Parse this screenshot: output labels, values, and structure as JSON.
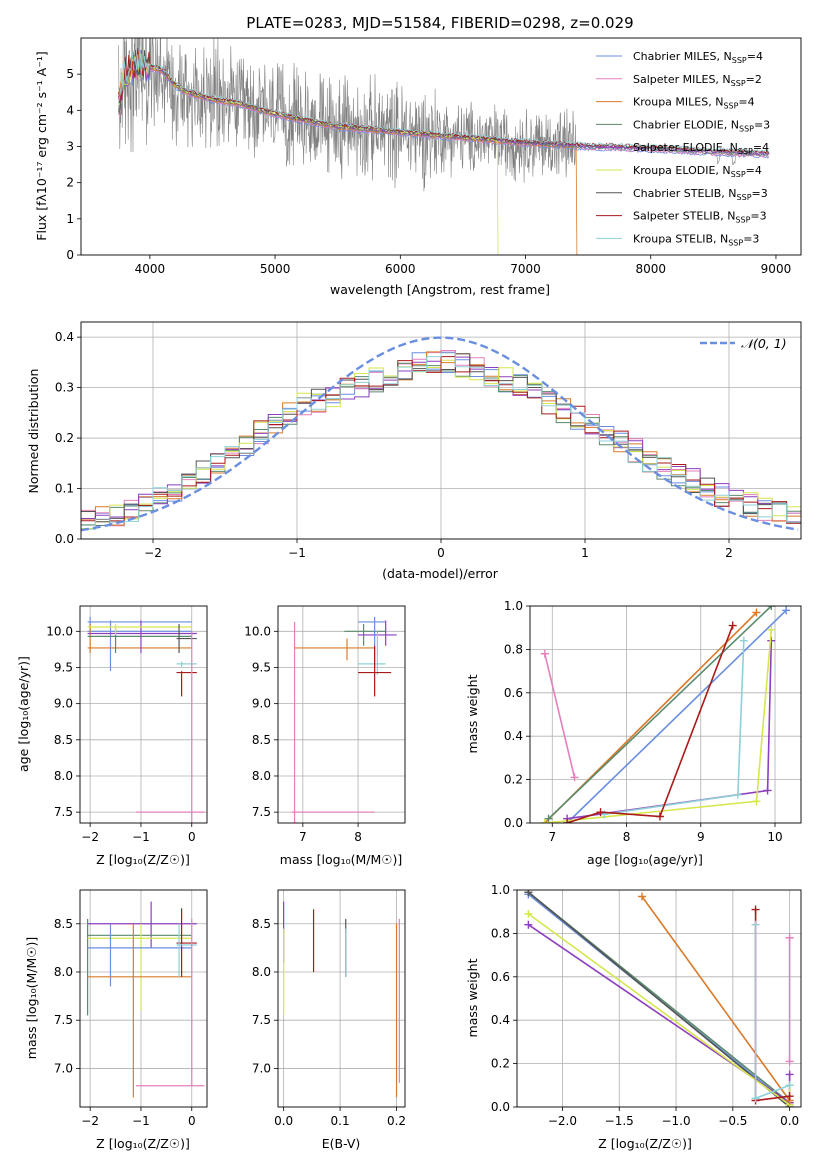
{
  "colors": {
    "spectrum": "#808080",
    "chabrier_miles": "#6a8ee0",
    "salpeter_miles": "#e57fbb",
    "kroupa_miles": "#d97b2a",
    "chabrier_elodie": "#5a8a6c",
    "salpeter_elodie": "#8e3fbf",
    "kroupa_elodie": "#d6e64d",
    "chabrier_stelib": "#555555",
    "salpeter_stelib": "#aa1a1a",
    "kroupa_stelib": "#8fd0d8",
    "normal_curve": "#6a8ee0"
  },
  "chart_data": [
    {
      "id": "spectrum",
      "type": "line",
      "title": "PLATE=0283, MJD=51584, FIBERID=0298, z=0.029",
      "xlabel": "wavelength [Angstrom, rest frame]",
      "ylabel": "Flux [fλ10⁻¹⁷ erg cm⁻² s⁻¹ A⁻¹]",
      "xlim": [
        3450,
        9200
      ],
      "ylim": [
        0,
        6
      ],
      "xticks": [
        4000,
        5000,
        6000,
        7000,
        8000,
        9000
      ],
      "yticks": [
        0,
        1,
        2,
        3,
        4,
        5
      ],
      "legend_position": "top-right",
      "continuum": {
        "x": [
          3750,
          3800,
          3900,
          4000,
          4100,
          4200,
          4300,
          4500,
          4700,
          5000,
          5200,
          5500,
          6000,
          6500,
          7000,
          7500,
          8000,
          8500,
          8900
        ],
        "y": [
          4.1,
          5.0,
          5.3,
          5.2,
          5.1,
          4.7,
          4.5,
          4.3,
          4.2,
          3.9,
          3.75,
          3.55,
          3.4,
          3.25,
          3.1,
          3.0,
          2.95,
          2.85,
          2.8
        ]
      },
      "noise_range": [
        3750,
        7400
      ],
      "model_cutoffs": {
        "kroupa_elodie": 6780,
        "kroupa_miles": 7410
      },
      "series": [
        {
          "name": "Chabrier MILES, N",
          "sub": "SSP",
          "value": "4",
          "color_key": "chabrier_miles"
        },
        {
          "name": "Salpeter MILES, N",
          "sub": "SSP",
          "value": "2",
          "color_key": "salpeter_miles"
        },
        {
          "name": "Kroupa MILES, N",
          "sub": "SSP",
          "value": "4",
          "color_key": "kroupa_miles"
        },
        {
          "name": "Chabrier ELODIE, N",
          "sub": "SSP",
          "value": "3",
          "color_key": "chabrier_elodie"
        },
        {
          "name": "Salpeter ELODIE, N",
          "sub": "SSP",
          "value": "4",
          "color_key": "salpeter_elodie"
        },
        {
          "name": "Kroupa ELODIE, N",
          "sub": "SSP",
          "value": "4",
          "color_key": "kroupa_elodie"
        },
        {
          "name": "Chabrier STELIB, N",
          "sub": "SSP",
          "value": "3",
          "color_key": "chabrier_stelib"
        },
        {
          "name": "Salpeter STELIB, N",
          "sub": "SSP",
          "value": "3",
          "color_key": "salpeter_stelib"
        },
        {
          "name": "Kroupa STELIB, N",
          "sub": "SSP",
          "value": "3",
          "color_key": "kroupa_stelib"
        }
      ]
    },
    {
      "id": "residuals",
      "type": "bar",
      "xlabel": "(data-model)/error",
      "ylabel": "Normed distribution",
      "xlim": [
        -2.5,
        2.5
      ],
      "ylim": [
        0,
        0.43
      ],
      "xticks": [
        -2,
        -1,
        0,
        1,
        2
      ],
      "yticks": [
        0.0,
        0.1,
        0.2,
        0.3,
        0.4
      ],
      "bin_width": 0.1,
      "grid": true,
      "legend": [
        {
          "name": "𝒩(0, 1)",
          "color_key": "normal_curve",
          "style": "dashed"
        }
      ],
      "legend_position": "top-right",
      "histogram_profile": {
        "x": [
          -2.5,
          -2.0,
          -1.5,
          -1.0,
          -0.5,
          0.0,
          0.5,
          1.0,
          1.5,
          2.0,
          2.5
        ],
        "y": [
          0.03,
          0.07,
          0.16,
          0.26,
          0.31,
          0.36,
          0.31,
          0.23,
          0.15,
          0.08,
          0.04
        ]
      }
    },
    {
      "id": "age_vs_Z",
      "type": "scatter",
      "xlabel": "Z [log₁₀(Z/Z☉)]",
      "ylabel": "age  [log₁₀(age/yr)]",
      "xlim": [
        -2.2,
        0.3
      ],
      "ylim": [
        7.35,
        10.35
      ],
      "xticks": [
        -2,
        -1,
        0
      ],
      "yticks": [
        7.5,
        8.0,
        8.5,
        9.0,
        9.5,
        10.0
      ],
      "crosses": [
        {
          "c": "chabrier_miles",
          "x": -2.0,
          "y": 10.13,
          "ex": [
            -2.05,
            0.0
          ],
          "ey": [
            10.0,
            10.2
          ]
        },
        {
          "c": "chabrier_miles",
          "x": -1.6,
          "y": 10.0,
          "ex": [
            -2.05,
            0.0
          ],
          "ey": [
            9.45,
            10.15
          ]
        },
        {
          "c": "kroupa_miles",
          "x": -2.0,
          "y": 9.77,
          "ex": [
            -2.05,
            0.0
          ],
          "ey": [
            9.7,
            10.1
          ]
        },
        {
          "c": "chabrier_elodie",
          "x": -1.5,
          "y": 9.93,
          "ex": [
            -2.05,
            0.0
          ],
          "ey": [
            9.7,
            10.05
          ]
        },
        {
          "c": "salpeter_elodie",
          "x": -1.0,
          "y": 9.97,
          "ex": [
            -2.05,
            0.1
          ],
          "ey": [
            9.7,
            10.15
          ]
        },
        {
          "c": "kroupa_elodie",
          "x": -1.5,
          "y": 10.06,
          "ex": [
            -2.05,
            0.0
          ],
          "ey": [
            9.95,
            10.1
          ]
        },
        {
          "c": "salpeter_stelib",
          "x": -0.2,
          "y": 9.43,
          "ex": [
            -0.3,
            0.1
          ],
          "ey": [
            9.1,
            9.45
          ]
        },
        {
          "c": "kroupa_stelib",
          "x": -0.2,
          "y": 9.55,
          "ex": [
            -0.3,
            0.1
          ],
          "ey": [
            9.5,
            9.58
          ]
        },
        {
          "c": "chabrier_stelib",
          "x": -0.25,
          "y": 9.9,
          "ex": [
            -0.3,
            0.1
          ],
          "ey": [
            9.7,
            10.1
          ]
        },
        {
          "c": "salpeter_miles",
          "x": 0.0,
          "y": 7.5,
          "ex": [
            -1.1,
            0.25
          ],
          "ey": [
            7.35,
            10.0
          ]
        }
      ]
    },
    {
      "id": "age_vs_mass",
      "type": "scatter",
      "xlabel": "mass [log₁₀(M/M☉)]",
      "ylim": [
        7.35,
        10.35
      ],
      "xlim": [
        6.55,
        8.85
      ],
      "xticks": [
        7,
        8
      ],
      "yticks": [
        7.5,
        8.0,
        8.5,
        9.0,
        9.5,
        10.0
      ],
      "crosses": [
        {
          "c": "kroupa_miles",
          "x": 7.8,
          "y": 9.77,
          "ex": [
            6.85,
            8.3
          ],
          "ey": [
            9.6,
            9.9
          ]
        },
        {
          "c": "chabrier_elodie",
          "x": 8.1,
          "y": 10.0,
          "ex": [
            7.75,
            8.5
          ],
          "ey": [
            9.8,
            10.1
          ]
        },
        {
          "c": "salpeter_elodie",
          "x": 8.5,
          "y": 9.95,
          "ex": [
            8.0,
            8.7
          ],
          "ey": [
            9.8,
            10.15
          ]
        },
        {
          "c": "chabrier_miles",
          "x": 8.3,
          "y": 10.13,
          "ex": [
            8.0,
            8.5
          ],
          "ey": [
            9.5,
            10.2
          ]
        },
        {
          "c": "kroupa_stelib",
          "x": 8.35,
          "y": 9.55,
          "ex": [
            8.0,
            8.5
          ],
          "ey": [
            9.4,
            10.0
          ]
        },
        {
          "c": "salpeter_stelib",
          "x": 8.3,
          "y": 9.43,
          "ex": [
            8.0,
            8.6
          ],
          "ey": [
            9.1,
            9.8
          ]
        },
        {
          "c": "salpeter_miles",
          "x": 6.85,
          "y": 7.5,
          "ex": [
            6.8,
            8.3
          ],
          "ey": [
            7.35,
            10.13
          ]
        }
      ]
    },
    {
      "id": "mass_weight_vs_age",
      "type": "line",
      "xlabel": "age  [log₁₀(age/yr)]",
      "ylabel": "mass weight",
      "xlim": [
        6.7,
        10.35
      ],
      "ylim": [
        0,
        1.0
      ],
      "xticks": [
        7,
        8,
        9,
        10
      ],
      "yticks": [
        0.0,
        0.2,
        0.4,
        0.6,
        0.8,
        1.0
      ],
      "series": [
        {
          "c": "salpeter_miles",
          "x": [
            6.9,
            7.3
          ],
          "y": [
            0.78,
            0.21
          ]
        },
        {
          "c": "chabrier_miles",
          "x": [
            7.2,
            10.15
          ],
          "y": [
            0.0,
            0.98
          ]
        },
        {
          "c": "kroupa_miles",
          "x": [
            6.9,
            9.75
          ],
          "y": [
            0.0,
            0.97
          ]
        },
        {
          "c": "chabrier_elodie",
          "x": [
            6.95,
            9.95
          ],
          "y": [
            0.02,
            1.0
          ]
        },
        {
          "c": "salpeter_elodie",
          "x": [
            7.2,
            9.9,
            9.95
          ],
          "y": [
            0.02,
            0.15,
            0.84
          ]
        },
        {
          "c": "kroupa_elodie",
          "x": [
            6.9,
            9.75,
            9.95
          ],
          "y": [
            0.0,
            0.1,
            0.89
          ]
        },
        {
          "c": "kroupa_stelib",
          "x": [
            7.7,
            9.5,
            9.58
          ],
          "y": [
            0.04,
            0.13,
            0.84
          ]
        },
        {
          "c": "salpeter_stelib",
          "x": [
            7.2,
            7.65,
            8.45,
            9.43
          ],
          "y": [
            0.0,
            0.05,
            0.03,
            0.91
          ]
        }
      ]
    },
    {
      "id": "mass_vs_Z",
      "type": "scatter",
      "xlabel": "Z [log₁₀(Z/Z☉)]",
      "ylabel": "mass [log₁₀(M/M☉)]",
      "xlim": [
        -2.2,
        0.3
      ],
      "ylim": [
        6.6,
        8.85
      ],
      "xticks": [
        -2,
        -1,
        0
      ],
      "yticks": [
        7.0,
        7.5,
        8.0,
        8.5
      ],
      "crosses": [
        {
          "c": "salpeter_elodie",
          "x": -0.8,
          "y": 8.5,
          "ex": [
            -2.05,
            0.1
          ],
          "ey": [
            8.25,
            8.73
          ]
        },
        {
          "c": "chabrier_elodie",
          "x": -2.05,
          "y": 8.38,
          "ex": [
            -2.05,
            0.0
          ],
          "ey": [
            7.55,
            8.55
          ]
        },
        {
          "c": "kroupa_elodie",
          "x": -1.0,
          "y": 8.35,
          "ex": [
            -2.05,
            0.0
          ],
          "ey": [
            7.6,
            8.5
          ]
        },
        {
          "c": "chabrier_miles",
          "x": -1.6,
          "y": 8.25,
          "ex": [
            -2.05,
            0.0
          ],
          "ey": [
            7.85,
            8.5
          ]
        },
        {
          "c": "kroupa_miles",
          "x": -1.15,
          "y": 7.95,
          "ex": [
            -2.05,
            0.0
          ],
          "ey": [
            6.7,
            8.5
          ]
        },
        {
          "c": "salpeter_stelib",
          "x": -0.2,
          "y": 8.3,
          "ex": [
            -0.3,
            0.1
          ],
          "ey": [
            7.95,
            8.66
          ]
        },
        {
          "c": "kroupa_stelib",
          "x": -0.25,
          "y": 8.28,
          "ex": [
            -0.3,
            0.1
          ],
          "ey": [
            7.95,
            8.5
          ]
        },
        {
          "c": "salpeter_miles",
          "x": 0.0,
          "y": 6.82,
          "ex": [
            -1.1,
            0.25
          ],
          "ey": [
            6.82,
            8.55
          ]
        }
      ]
    },
    {
      "id": "mass_vs_ebv",
      "type": "scatter",
      "xlabel": "E(B-V)",
      "xlim": [
        -0.01,
        0.215
      ],
      "ylim": [
        6.6,
        8.85
      ],
      "xticks": [
        0.0,
        0.1,
        0.2
      ],
      "yticks": [
        7.0,
        7.5,
        8.0,
        8.5
      ],
      "bars": [
        {
          "c": "salpeter_elodie",
          "x": 0.0,
          "y": [
            8.1,
            8.73
          ]
        },
        {
          "c": "kroupa_elodie",
          "x": 0.0,
          "y": [
            7.55,
            8.45
          ]
        },
        {
          "c": "salpeter_stelib",
          "x": 0.053,
          "y": [
            8.0,
            8.65
          ]
        },
        {
          "c": "chabrier_stelib",
          "x": 0.11,
          "y": [
            7.95,
            8.55
          ]
        },
        {
          "c": "kroupa_stelib",
          "x": 0.11,
          "y": [
            7.95,
            8.45
          ]
        },
        {
          "c": "kroupa_miles",
          "x": 0.2,
          "y": [
            6.7,
            8.5
          ]
        },
        {
          "c": "salpeter_miles",
          "x": 0.205,
          "y": [
            6.85,
            8.55
          ]
        }
      ]
    },
    {
      "id": "mass_weight_vs_Z",
      "type": "line",
      "xlabel": "Z [log₁₀(Z/Z☉)]",
      "ylabel": "mass weight",
      "xlim": [
        -2.4,
        0.1
      ],
      "ylim": [
        0,
        1.0
      ],
      "xticks": [
        -2.0,
        -1.5,
        -1.0,
        -0.5,
        0.0
      ],
      "yticks": [
        0.0,
        0.2,
        0.4,
        0.6,
        0.8,
        1.0
      ],
      "series": [
        {
          "c": "chabrier_miles",
          "x": [
            -2.3,
            0.0
          ],
          "y": [
            0.98,
            0.01
          ]
        },
        {
          "c": "chabrier_elodie",
          "x": [
            -2.3,
            0.0
          ],
          "y": [
            0.99,
            0.02
          ]
        },
        {
          "c": "chabrier_stelib",
          "x": [
            -2.3,
            0.0
          ],
          "y": [
            0.99,
            0.0
          ]
        },
        {
          "c": "salpeter_elodie",
          "x": [
            -2.3,
            0.0,
            0.0
          ],
          "y": [
            0.84,
            0.02,
            0.15
          ]
        },
        {
          "c": "kroupa_elodie",
          "x": [
            -2.3,
            0.0,
            0.0
          ],
          "y": [
            0.89,
            0.01,
            0.1
          ]
        },
        {
          "c": "kroupa_miles",
          "x": [
            -1.3,
            0.0
          ],
          "y": [
            0.97,
            0.03
          ]
        },
        {
          "c": "salpeter_stelib",
          "x": [
            -0.3,
            -0.3,
            0.0
          ],
          "y": [
            0.91,
            0.03,
            0.05
          ]
        },
        {
          "c": "kroupa_stelib",
          "x": [
            -0.3,
            -0.3,
            0.0
          ],
          "y": [
            0.84,
            0.04,
            0.1
          ]
        },
        {
          "c": "salpeter_miles",
          "x": [
            0.0,
            0.0
          ],
          "y": [
            0.21,
            0.78
          ]
        }
      ]
    }
  ]
}
